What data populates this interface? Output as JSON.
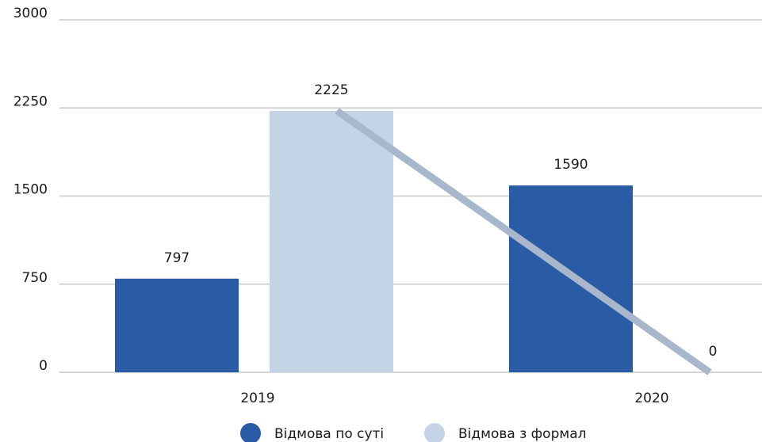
{
  "chart_data": {
    "type": "bar",
    "categories": [
      "2019",
      "2020"
    ],
    "series": [
      {
        "name": "Відмова по суті",
        "color": "#2a5ca5",
        "values": [
          797,
          1590
        ]
      },
      {
        "name": "Відмова з формал",
        "color": "#c5d3e6",
        "line_color": "#a9b7cc",
        "values": [
          2225,
          0
        ]
      }
    ],
    "ylim": [
      0,
      3000
    ],
    "yticks": [
      0,
      750,
      1500,
      2250,
      3000
    ],
    "grid": true
  }
}
